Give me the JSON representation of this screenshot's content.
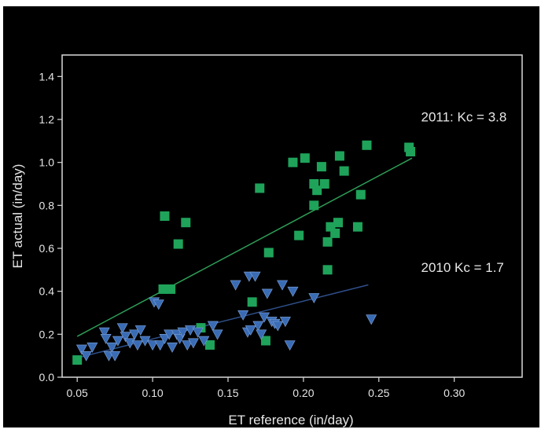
{
  "chart_data": {
    "type": "scatter",
    "title": "",
    "xlabel": "ET reference (in/day)",
    "ylabel": "ET actual (in/day)",
    "xlim": [
      0.04,
      0.345
    ],
    "ylim": [
      0.0,
      1.5
    ],
    "xticks": [
      0.05,
      0.1,
      0.15,
      0.2,
      0.25,
      0.3
    ],
    "xtick_labels": [
      "0.05",
      "0.10",
      "0.15",
      "0.20",
      "0.25",
      "0.30"
    ],
    "yticks": [
      0.0,
      0.2,
      0.4,
      0.6,
      0.8,
      1.0,
      1.2,
      1.4
    ],
    "ytick_labels": [
      "0.0",
      "0.2",
      "0.4",
      "0.6",
      "0.8",
      "1.0",
      "1.2",
      "1.4"
    ],
    "grid": false,
    "colors": {
      "background": "#000000",
      "frame": "#d9d9d9",
      "text": "#e6e6e6",
      "series_2011": "#1fa35a",
      "series_2010": "#3a6cb5",
      "trend_2011": "#2e9e57",
      "trend_2010": "#2f4f8a"
    },
    "annotations": [
      {
        "text": "2011: Kc = 3.8",
        "x": 0.278,
        "y": 1.19
      },
      {
        "text": "2010 Kc = 1.7",
        "x": 0.278,
        "y": 0.49
      }
    ],
    "series": [
      {
        "marker": "square",
        "color": "#1fa35a",
        "points": [
          [
            0.05,
            0.08
          ],
          [
            0.107,
            0.41
          ],
          [
            0.112,
            0.41
          ],
          [
            0.108,
            0.75
          ],
          [
            0.117,
            0.62
          ],
          [
            0.122,
            0.72
          ],
          [
            0.132,
            0.23
          ],
          [
            0.138,
            0.15
          ],
          [
            0.166,
            0.35
          ],
          [
            0.171,
            0.88
          ],
          [
            0.175,
            0.17
          ],
          [
            0.177,
            0.58
          ],
          [
            0.193,
            1.0
          ],
          [
            0.197,
            0.66
          ],
          [
            0.201,
            1.02
          ],
          [
            0.207,
            0.8
          ],
          [
            0.207,
            0.9
          ],
          [
            0.209,
            0.87
          ],
          [
            0.212,
            0.98
          ],
          [
            0.214,
            0.9
          ],
          [
            0.216,
            0.63
          ],
          [
            0.216,
            0.5
          ],
          [
            0.218,
            0.7
          ],
          [
            0.221,
            0.67
          ],
          [
            0.223,
            0.72
          ],
          [
            0.224,
            1.03
          ],
          [
            0.227,
            0.96
          ],
          [
            0.236,
            0.7
          ],
          [
            0.238,
            0.85
          ],
          [
            0.242,
            1.08
          ],
          [
            0.27,
            1.07
          ],
          [
            0.271,
            1.05
          ]
        ],
        "trendline": {
          "x": [
            0.05,
            0.272
          ],
          "y": [
            0.19,
            1.02
          ]
        }
      },
      {
        "marker": "triangle-down",
        "color": "#3a6cb5",
        "points": [
          [
            0.053,
            0.13
          ],
          [
            0.056,
            0.1
          ],
          [
            0.06,
            0.14
          ],
          [
            0.068,
            0.21
          ],
          [
            0.069,
            0.18
          ],
          [
            0.071,
            0.1
          ],
          [
            0.073,
            0.14
          ],
          [
            0.075,
            0.1
          ],
          [
            0.077,
            0.17
          ],
          [
            0.08,
            0.23
          ],
          [
            0.082,
            0.19
          ],
          [
            0.085,
            0.16
          ],
          [
            0.088,
            0.2
          ],
          [
            0.09,
            0.15
          ],
          [
            0.092,
            0.22
          ],
          [
            0.095,
            0.17
          ],
          [
            0.1,
            0.15
          ],
          [
            0.101,
            0.35
          ],
          [
            0.104,
            0.34
          ],
          [
            0.105,
            0.15
          ],
          [
            0.108,
            0.18
          ],
          [
            0.111,
            0.2
          ],
          [
            0.113,
            0.14
          ],
          [
            0.116,
            0.2
          ],
          [
            0.118,
            0.18
          ],
          [
            0.12,
            0.21
          ],
          [
            0.123,
            0.15
          ],
          [
            0.125,
            0.22
          ],
          [
            0.127,
            0.16
          ],
          [
            0.13,
            0.21
          ],
          [
            0.134,
            0.17
          ],
          [
            0.14,
            0.24
          ],
          [
            0.143,
            0.2
          ],
          [
            0.155,
            0.43
          ],
          [
            0.16,
            0.29
          ],
          [
            0.163,
            0.21
          ],
          [
            0.164,
            0.47
          ],
          [
            0.165,
            0.22
          ],
          [
            0.168,
            0.47
          ],
          [
            0.17,
            0.24
          ],
          [
            0.172,
            0.2
          ],
          [
            0.174,
            0.28
          ],
          [
            0.176,
            0.39
          ],
          [
            0.179,
            0.26
          ],
          [
            0.181,
            0.25
          ],
          [
            0.183,
            0.24
          ],
          [
            0.186,
            0.43
          ],
          [
            0.188,
            0.26
          ],
          [
            0.191,
            0.15
          ],
          [
            0.193,
            0.4
          ],
          [
            0.207,
            0.37
          ],
          [
            0.245,
            0.27
          ]
        ],
        "trendline": {
          "x": [
            0.05,
            0.243
          ],
          "y": [
            0.09,
            0.43
          ]
        }
      }
    ]
  }
}
